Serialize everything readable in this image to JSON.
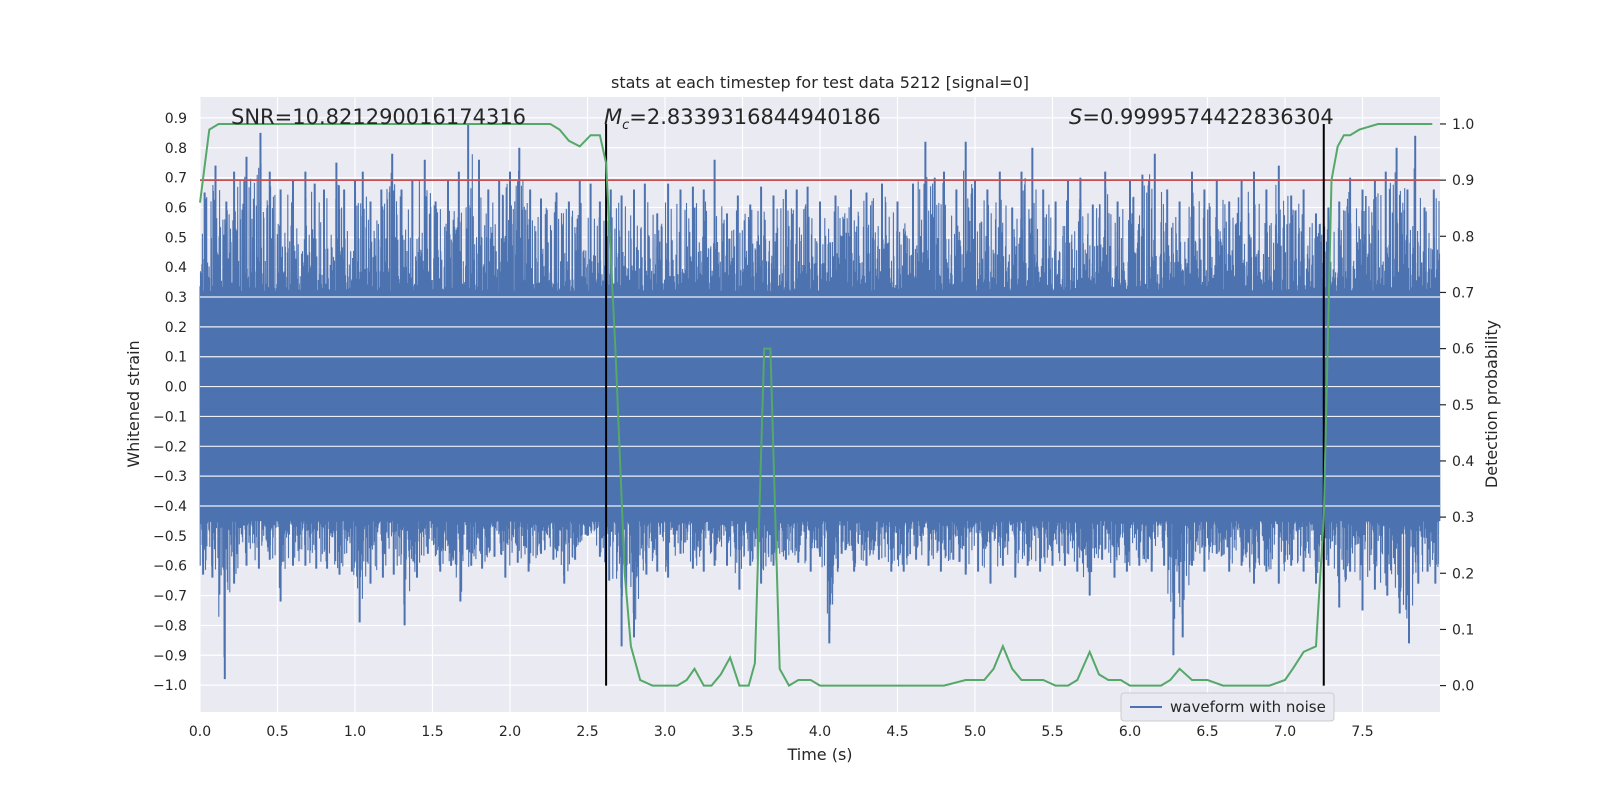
{
  "chart_data": {
    "type": "line",
    "title": "stats at each timestep for test data 5212 [signal=0]",
    "xlabel": "Time (s)",
    "ylabel": "Whitened strain",
    "y2label": "Detection probability",
    "xlim": [
      0.0,
      8.0
    ],
    "ylim": [
      -1.09,
      0.97
    ],
    "y2lim": [
      -0.047,
      1.048
    ],
    "x_ticks": [
      0.0,
      0.5,
      1.0,
      1.5,
      2.0,
      2.5,
      3.0,
      3.5,
      4.0,
      4.5,
      5.0,
      5.5,
      6.0,
      6.5,
      7.0,
      7.5
    ],
    "x_tick_labels": [
      "0.0",
      "0.5",
      "1.0",
      "1.5",
      "2.0",
      "2.5",
      "3.0",
      "3.5",
      "4.0",
      "4.5",
      "5.0",
      "5.5",
      "6.0",
      "6.5",
      "7.0",
      "7.5"
    ],
    "y_ticks": [
      0.9,
      0.8,
      0.7,
      0.6,
      0.5,
      0.4,
      0.3,
      0.2,
      0.1,
      0.0,
      -0.1,
      -0.2,
      -0.3,
      -0.4,
      -0.5,
      -0.6,
      -0.7,
      -0.8,
      -0.9,
      -1.0
    ],
    "y_tick_labels": [
      "0.9",
      "0.8",
      "0.7",
      "0.6",
      "0.5",
      "0.4",
      "0.3",
      "0.2",
      "0.1",
      "0.0",
      "−0.1",
      "−0.2",
      "−0.3",
      "−0.4",
      "−0.5",
      "−0.6",
      "−0.7",
      "−0.8",
      "−0.9",
      "−1.0"
    ],
    "y2_ticks": [
      1.0,
      0.9,
      0.8,
      0.7,
      0.6,
      0.5,
      0.4,
      0.3,
      0.2,
      0.1,
      0.0
    ],
    "y2_tick_labels": [
      "1.0",
      "0.9",
      "0.8",
      "0.7",
      "0.6",
      "0.5",
      "0.4",
      "0.3",
      "0.2",
      "0.1",
      "0.0"
    ],
    "grid": true,
    "legend_position": "lower-right",
    "annotations": {
      "snr": "SNR=10.821290016174316",
      "mc_symbol": "M",
      "mc_sub": "c",
      "mc_value": "=2.8339316844940186",
      "s_symbol": "S",
      "s_value": "=0.9999574422836304"
    },
    "threshold": {
      "y2": 0.9,
      "color": "#c44e52"
    },
    "vertical_lines": [
      2.62,
      7.25
    ],
    "series": [
      {
        "name": "waveform with noise",
        "axis": "left",
        "color": "#4c72b0",
        "description_free": true,
        "upper_peaks": [
          [
            0.03,
            0.65
          ],
          [
            0.1,
            0.74
          ],
          [
            0.17,
            0.62
          ],
          [
            0.22,
            0.72
          ],
          [
            0.3,
            0.77
          ],
          [
            0.39,
            0.85
          ],
          [
            0.45,
            0.72
          ],
          [
            0.52,
            0.66
          ],
          [
            0.6,
            0.69
          ],
          [
            0.68,
            0.72
          ],
          [
            0.74,
            0.68
          ],
          [
            0.8,
            0.66
          ],
          [
            0.88,
            0.75
          ],
          [
            0.93,
            0.66
          ],
          [
            1.0,
            0.69
          ],
          [
            1.05,
            0.72
          ],
          [
            1.1,
            0.62
          ],
          [
            1.17,
            0.66
          ],
          [
            1.24,
            0.78
          ],
          [
            1.3,
            0.66
          ],
          [
            1.37,
            0.69
          ],
          [
            1.45,
            0.76
          ],
          [
            1.52,
            0.62
          ],
          [
            1.6,
            0.69
          ],
          [
            1.67,
            0.72
          ],
          [
            1.73,
            0.88
          ],
          [
            1.8,
            0.76
          ],
          [
            1.86,
            0.66
          ],
          [
            1.93,
            0.69
          ],
          [
            2.0,
            0.72
          ],
          [
            2.06,
            0.8
          ],
          [
            2.13,
            0.66
          ],
          [
            2.2,
            0.63
          ],
          [
            2.3,
            0.65
          ],
          [
            2.38,
            0.62
          ],
          [
            2.45,
            0.69
          ],
          [
            2.52,
            0.68
          ],
          [
            2.58,
            0.62
          ],
          [
            2.65,
            0.66
          ],
          [
            2.72,
            0.64
          ],
          [
            2.8,
            0.66
          ],
          [
            2.87,
            0.68
          ],
          [
            2.95,
            0.58
          ],
          [
            3.02,
            0.68
          ],
          [
            3.1,
            0.66
          ],
          [
            3.18,
            0.67
          ],
          [
            3.25,
            0.66
          ],
          [
            3.32,
            0.76
          ],
          [
            3.4,
            0.58
          ],
          [
            3.47,
            0.64
          ],
          [
            3.55,
            0.61
          ],
          [
            3.62,
            0.67
          ],
          [
            3.7,
            0.64
          ],
          [
            3.78,
            0.66
          ],
          [
            3.85,
            0.66
          ],
          [
            3.92,
            0.67
          ],
          [
            4.0,
            0.62
          ],
          [
            4.1,
            0.64
          ],
          [
            4.2,
            0.66
          ],
          [
            4.3,
            0.65
          ],
          [
            4.4,
            0.68
          ],
          [
            4.5,
            0.62
          ],
          [
            4.6,
            0.68
          ],
          [
            4.68,
            0.82
          ],
          [
            4.74,
            0.7
          ],
          [
            4.8,
            0.72
          ],
          [
            4.88,
            0.66
          ],
          [
            4.94,
            0.82
          ],
          [
            5.0,
            0.69
          ],
          [
            5.08,
            0.66
          ],
          [
            5.16,
            0.72
          ],
          [
            5.24,
            0.6
          ],
          [
            5.3,
            0.72
          ],
          [
            5.37,
            0.8
          ],
          [
            5.44,
            0.66
          ],
          [
            5.52,
            0.62
          ],
          [
            5.6,
            0.69
          ],
          [
            5.68,
            0.7
          ],
          [
            5.76,
            0.61
          ],
          [
            5.84,
            0.72
          ],
          [
            5.92,
            0.62
          ],
          [
            6.0,
            0.69
          ],
          [
            6.08,
            0.71
          ],
          [
            6.16,
            0.78
          ],
          [
            6.24,
            0.66
          ],
          [
            6.32,
            0.62
          ],
          [
            6.4,
            0.72
          ],
          [
            6.48,
            0.66
          ],
          [
            6.56,
            0.69
          ],
          [
            6.64,
            0.62
          ],
          [
            6.72,
            0.69
          ],
          [
            6.8,
            0.72
          ],
          [
            6.88,
            0.66
          ],
          [
            6.96,
            0.74
          ],
          [
            7.04,
            0.64
          ],
          [
            7.12,
            0.66
          ],
          [
            7.2,
            0.58
          ],
          [
            7.28,
            0.6
          ],
          [
            7.35,
            0.62
          ],
          [
            7.42,
            0.7
          ],
          [
            7.5,
            0.66
          ],
          [
            7.58,
            0.69
          ],
          [
            7.65,
            0.72
          ],
          [
            7.72,
            0.8
          ],
          [
            7.79,
            0.66
          ],
          [
            7.84,
            0.84
          ],
          [
            7.9,
            0.6
          ],
          [
            7.96,
            0.66
          ]
        ],
        "lower_peaks": [
          [
            0.02,
            -0.63
          ],
          [
            0.08,
            -0.64
          ],
          [
            0.16,
            -0.98
          ],
          [
            0.22,
            -0.66
          ],
          [
            0.3,
            -0.6
          ],
          [
            0.38,
            -0.61
          ],
          [
            0.45,
            -0.58
          ],
          [
            0.52,
            -0.72
          ],
          [
            0.6,
            -0.6
          ],
          [
            0.68,
            -0.6
          ],
          [
            0.75,
            -0.61
          ],
          [
            0.82,
            -0.61
          ],
          [
            0.9,
            -0.63
          ],
          [
            0.98,
            -0.62
          ],
          [
            1.03,
            -0.79
          ],
          [
            1.1,
            -0.66
          ],
          [
            1.18,
            -0.64
          ],
          [
            1.25,
            -0.63
          ],
          [
            1.32,
            -0.8
          ],
          [
            1.4,
            -0.64
          ],
          [
            1.47,
            -0.56
          ],
          [
            1.55,
            -0.62
          ],
          [
            1.62,
            -0.6
          ],
          [
            1.68,
            -0.72
          ],
          [
            1.75,
            -0.6
          ],
          [
            1.82,
            -0.61
          ],
          [
            1.9,
            -0.57
          ],
          [
            1.97,
            -0.64
          ],
          [
            2.05,
            -0.59
          ],
          [
            2.12,
            -0.62
          ],
          [
            2.2,
            -0.56
          ],
          [
            2.28,
            -0.58
          ],
          [
            2.35,
            -0.66
          ],
          [
            2.42,
            -0.58
          ],
          [
            2.5,
            -0.5
          ],
          [
            2.58,
            -0.57
          ],
          [
            2.64,
            -0.65
          ],
          [
            2.72,
            -0.87
          ],
          [
            2.8,
            -0.84
          ],
          [
            2.88,
            -0.63
          ],
          [
            2.95,
            -0.62
          ],
          [
            3.02,
            -0.64
          ],
          [
            3.1,
            -0.56
          ],
          [
            3.18,
            -0.61
          ],
          [
            3.25,
            -0.62
          ],
          [
            3.32,
            -0.6
          ],
          [
            3.4,
            -0.6
          ],
          [
            3.48,
            -0.68
          ],
          [
            3.55,
            -0.6
          ],
          [
            3.62,
            -0.66
          ],
          [
            3.7,
            -0.6
          ],
          [
            3.78,
            -0.58
          ],
          [
            3.86,
            -0.59
          ],
          [
            3.94,
            -0.62
          ],
          [
            4.0,
            -0.57
          ],
          [
            4.06,
            -0.86
          ],
          [
            4.14,
            -0.56
          ],
          [
            4.22,
            -0.62
          ],
          [
            4.3,
            -0.6
          ],
          [
            4.38,
            -0.58
          ],
          [
            4.46,
            -0.62
          ],
          [
            4.54,
            -0.62
          ],
          [
            4.62,
            -0.58
          ],
          [
            4.7,
            -0.6
          ],
          [
            4.78,
            -0.62
          ],
          [
            4.86,
            -0.58
          ],
          [
            4.94,
            -0.63
          ],
          [
            5.02,
            -0.62
          ],
          [
            5.1,
            -0.66
          ],
          [
            5.18,
            -0.6
          ],
          [
            5.26,
            -0.64
          ],
          [
            5.34,
            -0.6
          ],
          [
            5.42,
            -0.62
          ],
          [
            5.5,
            -0.6
          ],
          [
            5.58,
            -0.6
          ],
          [
            5.66,
            -0.62
          ],
          [
            5.74,
            -0.7
          ],
          [
            5.82,
            -0.58
          ],
          [
            5.9,
            -0.64
          ],
          [
            5.98,
            -0.62
          ],
          [
            6.06,
            -0.6
          ],
          [
            6.14,
            -0.62
          ],
          [
            6.22,
            -0.6
          ],
          [
            6.28,
            -0.9
          ],
          [
            6.34,
            -0.84
          ],
          [
            6.4,
            -0.6
          ],
          [
            6.48,
            -0.62
          ],
          [
            6.56,
            -0.56
          ],
          [
            6.64,
            -0.62
          ],
          [
            6.72,
            -0.6
          ],
          [
            6.8,
            -0.66
          ],
          [
            6.88,
            -0.62
          ],
          [
            6.96,
            -0.66
          ],
          [
            7.04,
            -0.6
          ],
          [
            7.12,
            -0.62
          ],
          [
            7.2,
            -0.66
          ],
          [
            7.28,
            -0.6
          ],
          [
            7.35,
            -0.74
          ],
          [
            7.42,
            -0.62
          ],
          [
            7.5,
            -0.75
          ],
          [
            7.58,
            -0.68
          ],
          [
            7.66,
            -0.7
          ],
          [
            7.74,
            -0.76
          ],
          [
            7.8,
            -0.86
          ],
          [
            7.86,
            -0.66
          ],
          [
            7.92,
            -0.62
          ],
          [
            7.97,
            -0.66
          ]
        ]
      },
      {
        "name": "",
        "axis": "right",
        "color": "#55a868",
        "x": [
          0.0,
          0.06,
          0.12,
          0.2,
          0.4,
          0.6,
          0.8,
          1.0,
          1.2,
          1.4,
          1.6,
          1.8,
          2.0,
          2.1,
          2.2,
          2.26,
          2.32,
          2.38,
          2.45,
          2.52,
          2.58,
          2.62,
          2.68,
          2.74,
          2.78,
          2.84,
          2.92,
          3.0,
          3.08,
          3.14,
          3.19,
          3.25,
          3.3,
          3.36,
          3.42,
          3.48,
          3.54,
          3.58,
          3.64,
          3.68,
          3.74,
          3.8,
          3.86,
          3.94,
          4.0,
          4.2,
          4.4,
          4.6,
          4.8,
          4.94,
          5.0,
          5.06,
          5.12,
          5.18,
          5.24,
          5.3,
          5.36,
          5.44,
          5.52,
          5.6,
          5.66,
          5.74,
          5.8,
          5.86,
          5.94,
          6.0,
          6.1,
          6.2,
          6.26,
          6.32,
          6.4,
          6.5,
          6.6,
          6.7,
          6.8,
          6.9,
          7.0,
          7.05,
          7.12,
          7.2,
          7.25,
          7.3,
          7.34,
          7.38,
          7.42,
          7.48,
          7.6,
          7.8,
          7.95
        ],
        "y": [
          0.86,
          0.99,
          1.0,
          1.0,
          1.0,
          1.0,
          1.0,
          1.0,
          1.0,
          1.0,
          1.0,
          1.0,
          1.0,
          1.0,
          1.0,
          1.0,
          0.99,
          0.97,
          0.96,
          0.98,
          0.98,
          0.93,
          0.6,
          0.2,
          0.07,
          0.01,
          0.0,
          0.0,
          0.0,
          0.01,
          0.03,
          0.0,
          0.0,
          0.02,
          0.05,
          0.0,
          0.0,
          0.04,
          0.6,
          0.6,
          0.03,
          0.0,
          0.01,
          0.01,
          0.0,
          0.0,
          0.0,
          0.0,
          0.0,
          0.01,
          0.01,
          0.01,
          0.03,
          0.07,
          0.03,
          0.01,
          0.01,
          0.01,
          0.0,
          0.0,
          0.01,
          0.06,
          0.02,
          0.01,
          0.01,
          0.0,
          0.0,
          0.0,
          0.01,
          0.03,
          0.01,
          0.01,
          0.0,
          0.0,
          0.0,
          0.0,
          0.01,
          0.03,
          0.06,
          0.07,
          0.3,
          0.9,
          0.96,
          0.98,
          0.98,
          0.99,
          1.0,
          1.0,
          1.0
        ]
      }
    ]
  }
}
